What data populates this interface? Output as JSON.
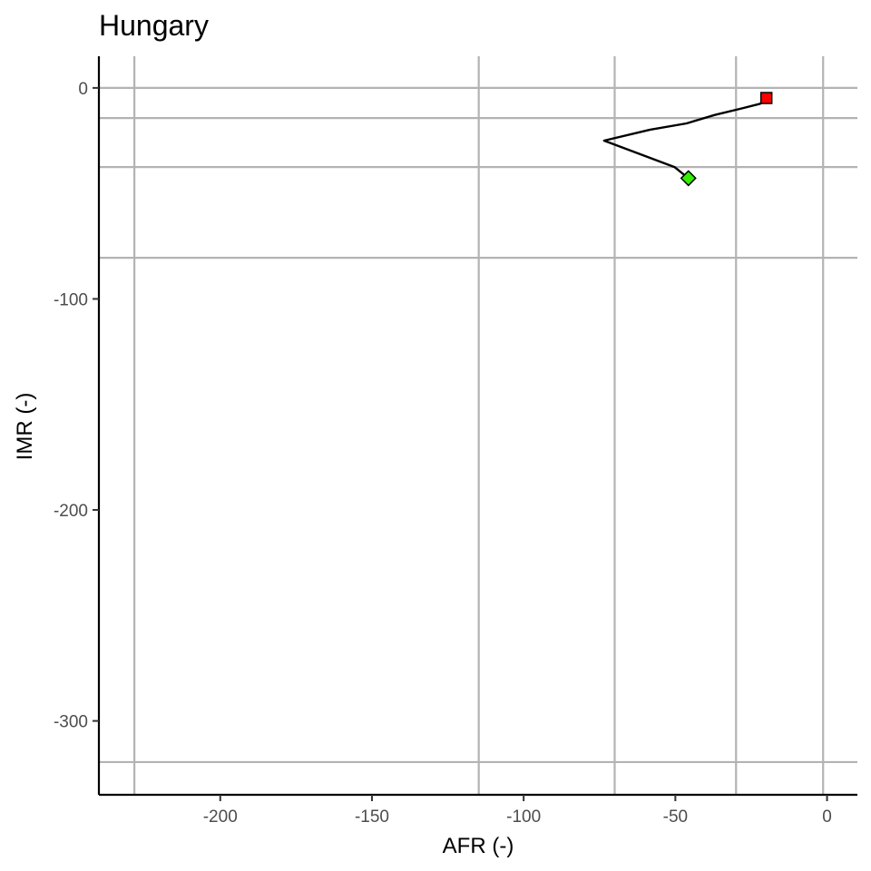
{
  "chart_data": {
    "type": "line",
    "title": "Hungary",
    "xlabel": "AFR (-)",
    "ylabel": "IMR (-)",
    "xlim": [
      -240,
      10
    ],
    "ylim": [
      -335,
      15
    ],
    "x_ticks": [
      -200,
      -150,
      -100,
      -50,
      0
    ],
    "x_tick_labels": [
      "-200",
      "-150",
      "-100",
      "-50",
      "0"
    ],
    "y_ticks": [
      0,
      -100,
      -200,
      -300
    ],
    "y_tick_labels": [
      "0",
      "-100",
      "-200",
      "-300"
    ],
    "grid": "reference lines",
    "v_reference_lines": [
      -228.3,
      -114.8,
      -70.0,
      -30.0,
      -1.3
    ],
    "h_reference_lines": [
      0,
      -14.3,
      -37.5,
      -80.5,
      -319.5
    ],
    "series": [
      {
        "x": [
          -45.7,
          -50.3,
          -73.5,
          -58.3,
          -46.3,
          -37.0,
          -27.5,
          -22.0,
          -20.0
        ],
        "y": [
          -42.8,
          -37.5,
          -25.0,
          -19.8,
          -16.8,
          -12.8,
          -9.5,
          -7.5,
          -4.8
        ],
        "color": "#000000"
      }
    ],
    "start_marker": {
      "shape": "diamond",
      "color": "#33ee00",
      "x": -45.7,
      "y": -42.8
    },
    "end_marker": {
      "shape": "square",
      "color": "#ff0000",
      "x": -20.0,
      "y": -4.8
    }
  }
}
